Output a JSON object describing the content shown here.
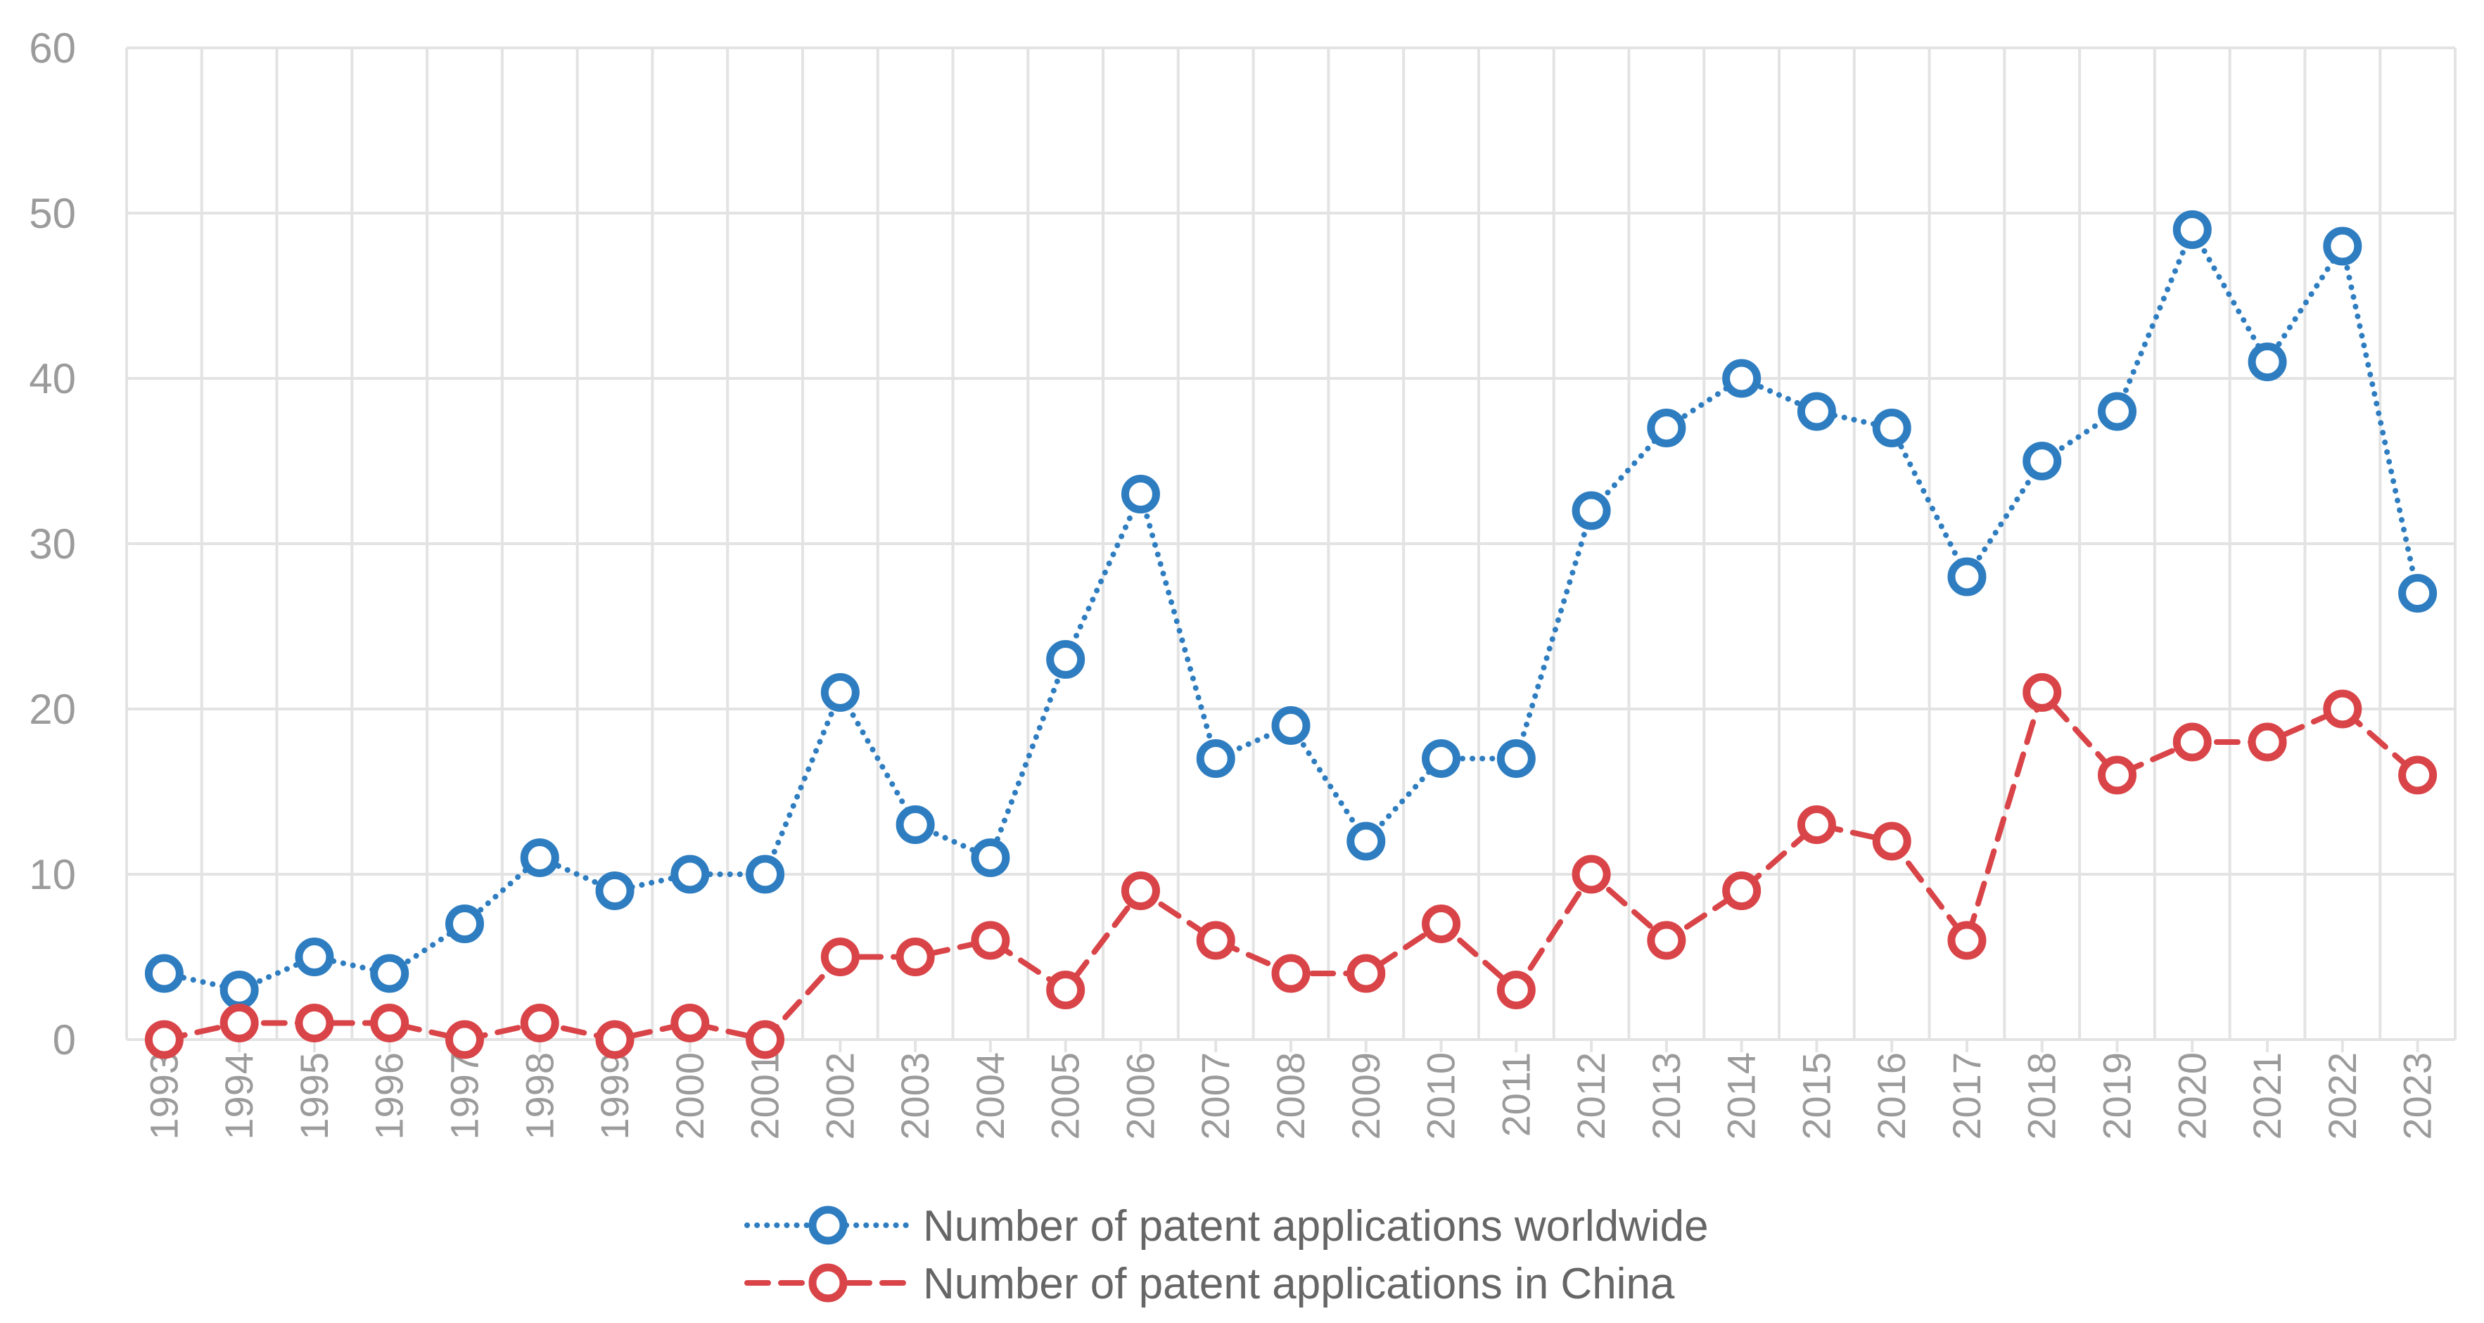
{
  "chart_data": {
    "type": "line",
    "title": "",
    "xlabel": "",
    "ylabel": "",
    "ylim": [
      0,
      60
    ],
    "yticks": [
      "0",
      "10",
      "20",
      "30",
      "40",
      "50",
      "60"
    ],
    "grid": true,
    "legend_position": "bottom",
    "categories": [
      "1993",
      "1994",
      "1995",
      "1996",
      "1997",
      "1998",
      "1999",
      "2000",
      "2001",
      "2002",
      "2003",
      "2004",
      "2005",
      "2006",
      "2007",
      "2008",
      "2009",
      "2010",
      "2011",
      "2012",
      "2013",
      "2014",
      "2015",
      "2016",
      "2017",
      "2018",
      "2019",
      "2020",
      "2021",
      "2022",
      "2023"
    ],
    "series": [
      {
        "name": "Number of patent applications worldwide",
        "color": "#2e7dc0",
        "line_style": "dotted",
        "values": [
          4,
          3,
          5,
          4,
          7,
          11,
          9,
          10,
          10,
          21,
          13,
          11,
          23,
          33,
          17,
          19,
          12,
          17,
          17,
          32,
          37,
          40,
          38,
          37,
          28,
          35,
          38,
          49,
          41,
          48,
          27
        ]
      },
      {
        "name": "Number of patent applications in China",
        "color": "#d94448",
        "line_style": "dashed",
        "values": [
          0,
          1,
          1,
          1,
          0,
          1,
          0,
          1,
          0,
          5,
          5,
          6,
          3,
          9,
          6,
          4,
          4,
          7,
          3,
          10,
          6,
          9,
          13,
          12,
          6,
          21,
          16,
          18,
          18,
          20,
          16
        ]
      }
    ]
  }
}
